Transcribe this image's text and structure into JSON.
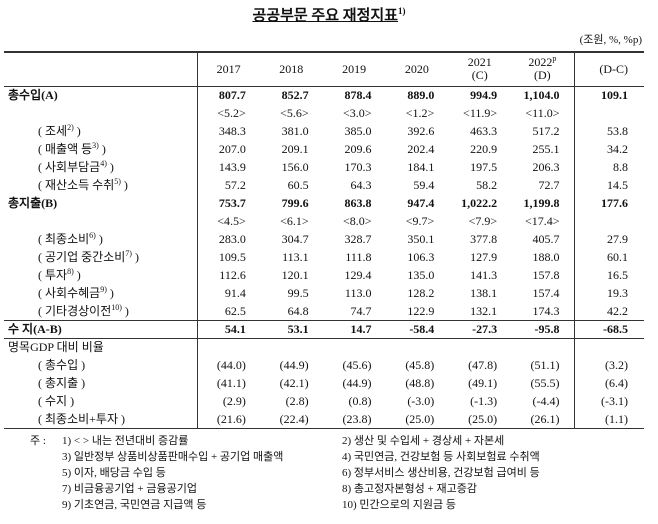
{
  "title": {
    "text": "공공부문 주요 재정지표",
    "note": "1)"
  },
  "unit": "(조원, %, %p)",
  "columns": [
    {
      "text": "2017"
    },
    {
      "text": "2018"
    },
    {
      "text": "2019"
    },
    {
      "text": "2020"
    },
    {
      "text": "2021",
      "sub": "(C)"
    },
    {
      "text": "2022",
      "sup": "p",
      "sub": "(D)"
    },
    {
      "text": "(D-C)"
    }
  ],
  "rows": [
    {
      "label": [
        "총수입(A)"
      ],
      "cells": [
        "807.7",
        "852.7",
        "878.4",
        "889.0",
        "994.9",
        "1,104.0",
        "109.1"
      ]
    },
    {
      "cells": [
        "<5.2>",
        "<5.6>",
        "<3.0>",
        "<1.2>",
        "<11.9>",
        "<11.0>"
      ]
    },
    {
      "label": [
        "( 조세",
        "2)",
        " )"
      ],
      "cells": [
        "348.3",
        "381.0",
        "385.0",
        "392.6",
        "463.3",
        "517.2",
        "53.8"
      ]
    },
    {
      "label": [
        "( 매출액 등",
        "3)",
        " )"
      ],
      "cells": [
        "207.0",
        "209.1",
        "209.6",
        "202.4",
        "220.9",
        "255.1",
        "34.2"
      ]
    },
    {
      "label": [
        "( 사회부담금",
        "4)",
        " )"
      ],
      "cells": [
        "143.9",
        "156.0",
        "170.3",
        "184.1",
        "197.5",
        "206.3",
        "8.8"
      ]
    },
    {
      "label": [
        "( 재산소득 수취",
        "5)",
        " )"
      ],
      "cells": [
        "57.2",
        "60.5",
        "64.3",
        "59.4",
        "58.2",
        "72.7",
        "14.5"
      ]
    },
    {
      "label": [
        "총지출(B)"
      ],
      "cells": [
        "753.7",
        "799.6",
        "863.8",
        "947.4",
        "1,022.2",
        "1,199.8",
        "177.6"
      ]
    },
    {
      "cells": [
        "<4.5>",
        "<6.1>",
        "<8.0>",
        "<9.7>",
        "<7.9>",
        "<17.4>"
      ]
    },
    {
      "label": [
        "( 최종소비",
        "6)",
        " )"
      ],
      "cells": [
        "283.0",
        "304.7",
        "328.7",
        "350.1",
        "377.8",
        "405.7",
        "27.9"
      ]
    },
    {
      "label": [
        "( 공기업 중간소비",
        "7)",
        " )"
      ],
      "cells": [
        "109.5",
        "113.1",
        "111.8",
        "106.3",
        "127.9",
        "188.0",
        "60.1"
      ]
    },
    {
      "label": [
        "( 투자",
        "8)",
        " )"
      ],
      "cells": [
        "112.6",
        "120.1",
        "129.4",
        "135.0",
        "141.3",
        "157.8",
        "16.5"
      ]
    },
    {
      "label": [
        "( 사회수혜금",
        "9)",
        " )"
      ],
      "cells": [
        "91.4",
        "99.5",
        "113.0",
        "128.2",
        "138.1",
        "157.4",
        "19.3"
      ]
    },
    {
      "label": [
        "( 기타경상이전",
        "10)",
        " )"
      ],
      "cells": [
        "62.5",
        "64.8",
        "74.7",
        "122.9",
        "132.1",
        "174.3",
        "42.2"
      ]
    },
    {
      "label": [
        "수 지(A-B)"
      ],
      "cells": [
        "54.1",
        "53.1",
        "14.7",
        "-58.4",
        "-27.3",
        "-95.8",
        "-68.5"
      ]
    },
    {
      "label": [
        "명목GDP 대비 비율"
      ]
    },
    {
      "label": [
        "( 총수입 )"
      ],
      "cells": [
        "(44.0)",
        "(44.9)",
        "(45.6)",
        "(45.8)",
        "(47.8)",
        "(51.1)",
        "(3.2)"
      ]
    },
    {
      "label": [
        "( 총지출 )"
      ],
      "cells": [
        "(41.1)",
        "(42.1)",
        "(44.9)",
        "(48.8)",
        "(49.1)",
        "(55.5)",
        "(6.4)"
      ]
    },
    {
      "label": [
        "( 수지 )"
      ],
      "cells": [
        "(2.9)",
        "(2.8)",
        "(0.8)",
        "(-3.0)",
        "(-1.3)",
        "(-4.4)",
        "(-3.1)"
      ]
    },
    {
      "label": [
        "( 최종소비+투자 )"
      ],
      "cells": [
        "(21.6)",
        "(22.4)",
        "(23.8)",
        "(25.0)",
        "(25.0)",
        "(26.1)",
        "(1.1)"
      ]
    }
  ],
  "footnotes": {
    "lead": "주 :",
    "items": [
      "1) < > 내는 전년대비 증감률",
      "2) 생산 및 수입세 + 경상세 + 자본세",
      "3) 일반정부 상품비상품판매수입 + 공기업 매출액",
      "4) 국민연금, 건강보험 등 사회보험료 수취액",
      "5) 이자, 배당금 수입 등",
      "6) 정부서비스 생산비용, 건강보험 급여비 등",
      "7) 비금융공기업 + 금융공기업",
      "8) 총고정자본형성 + 재고증감",
      "9) 기초연금, 국민연금 지급액 등",
      "10) 민간으로의 지원금 등"
    ]
  }
}
